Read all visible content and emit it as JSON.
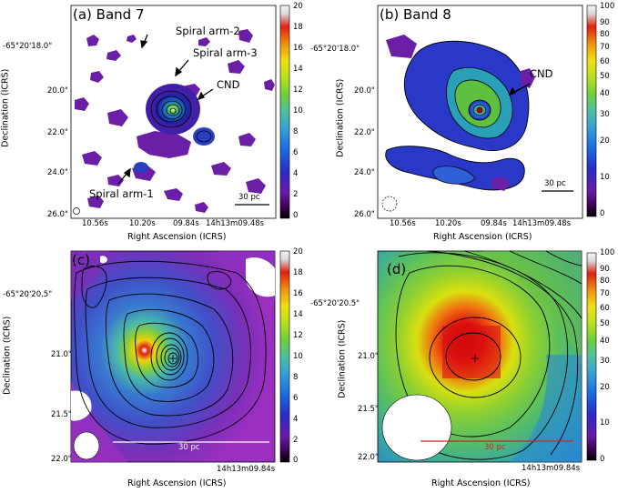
{
  "panels": {
    "a": {
      "title": "(a) Band 7",
      "annotations": [
        "Spiral arm-2",
        "Spiral arm-3",
        "CND",
        "Spiral arm-1"
      ],
      "scale_bar": "30 pc",
      "y_ticks": [
        "-65°20'18.0\"",
        "20.0\"",
        "22.0\"",
        "24.0\"",
        "26.0\""
      ],
      "x_ticks": [
        "10.56s",
        "10.20s",
        "09.84s",
        "14h13m09.48s"
      ],
      "colorbar_ticks": [
        "20",
        "18",
        "16",
        "14",
        "12",
        "10",
        "8",
        "6",
        "4",
        "2",
        "0"
      ]
    },
    "b": {
      "title": "(b) Band 8",
      "annotations": [
        "CND"
      ],
      "scale_bar": "30 pc",
      "y_ticks": [
        "-65°20'18.0\"",
        "20.0\"",
        "22.0\"",
        "24.0\"",
        "26.0\""
      ],
      "x_ticks": [
        "10.56s",
        "10.20s",
        "09.84s",
        "14h13m09.48s"
      ],
      "colorbar_ticks": [
        "100",
        "90",
        "80",
        "70",
        "60",
        "50",
        "40",
        "30",
        "20",
        "10",
        "0"
      ]
    },
    "c": {
      "title": "(c)",
      "scale_bar": "30 pc",
      "y_ticks": [
        "-65°20'20.5\"",
        "21.0\"",
        "21.5\"",
        "22.0\""
      ],
      "x_ticks": [
        "14h13m09.84s"
      ],
      "colorbar_ticks": [
        "20",
        "18",
        "16",
        "14",
        "12",
        "10",
        "8",
        "6",
        "4",
        "2",
        "0"
      ]
    },
    "d": {
      "title": "(d)",
      "scale_bar": "30 pc",
      "y_ticks": [
        "-65°20'20.5\"",
        "21.0\"",
        "21.5\"",
        "22.0\""
      ],
      "x_ticks": [
        "14h13m09.84s"
      ],
      "colorbar_ticks": [
        "100",
        "90",
        "80",
        "70",
        "60",
        "50",
        "40",
        "30",
        "20",
        "10",
        "0"
      ]
    }
  },
  "axis_labels": {
    "x": "Right Ascension (ICRS)",
    "y": "Declination (ICRS)"
  },
  "colors": {
    "background": "#ffffff",
    "contour": "#000000",
    "scale_bar_c": "#ffffff",
    "scale_bar_d": "#d42020"
  }
}
